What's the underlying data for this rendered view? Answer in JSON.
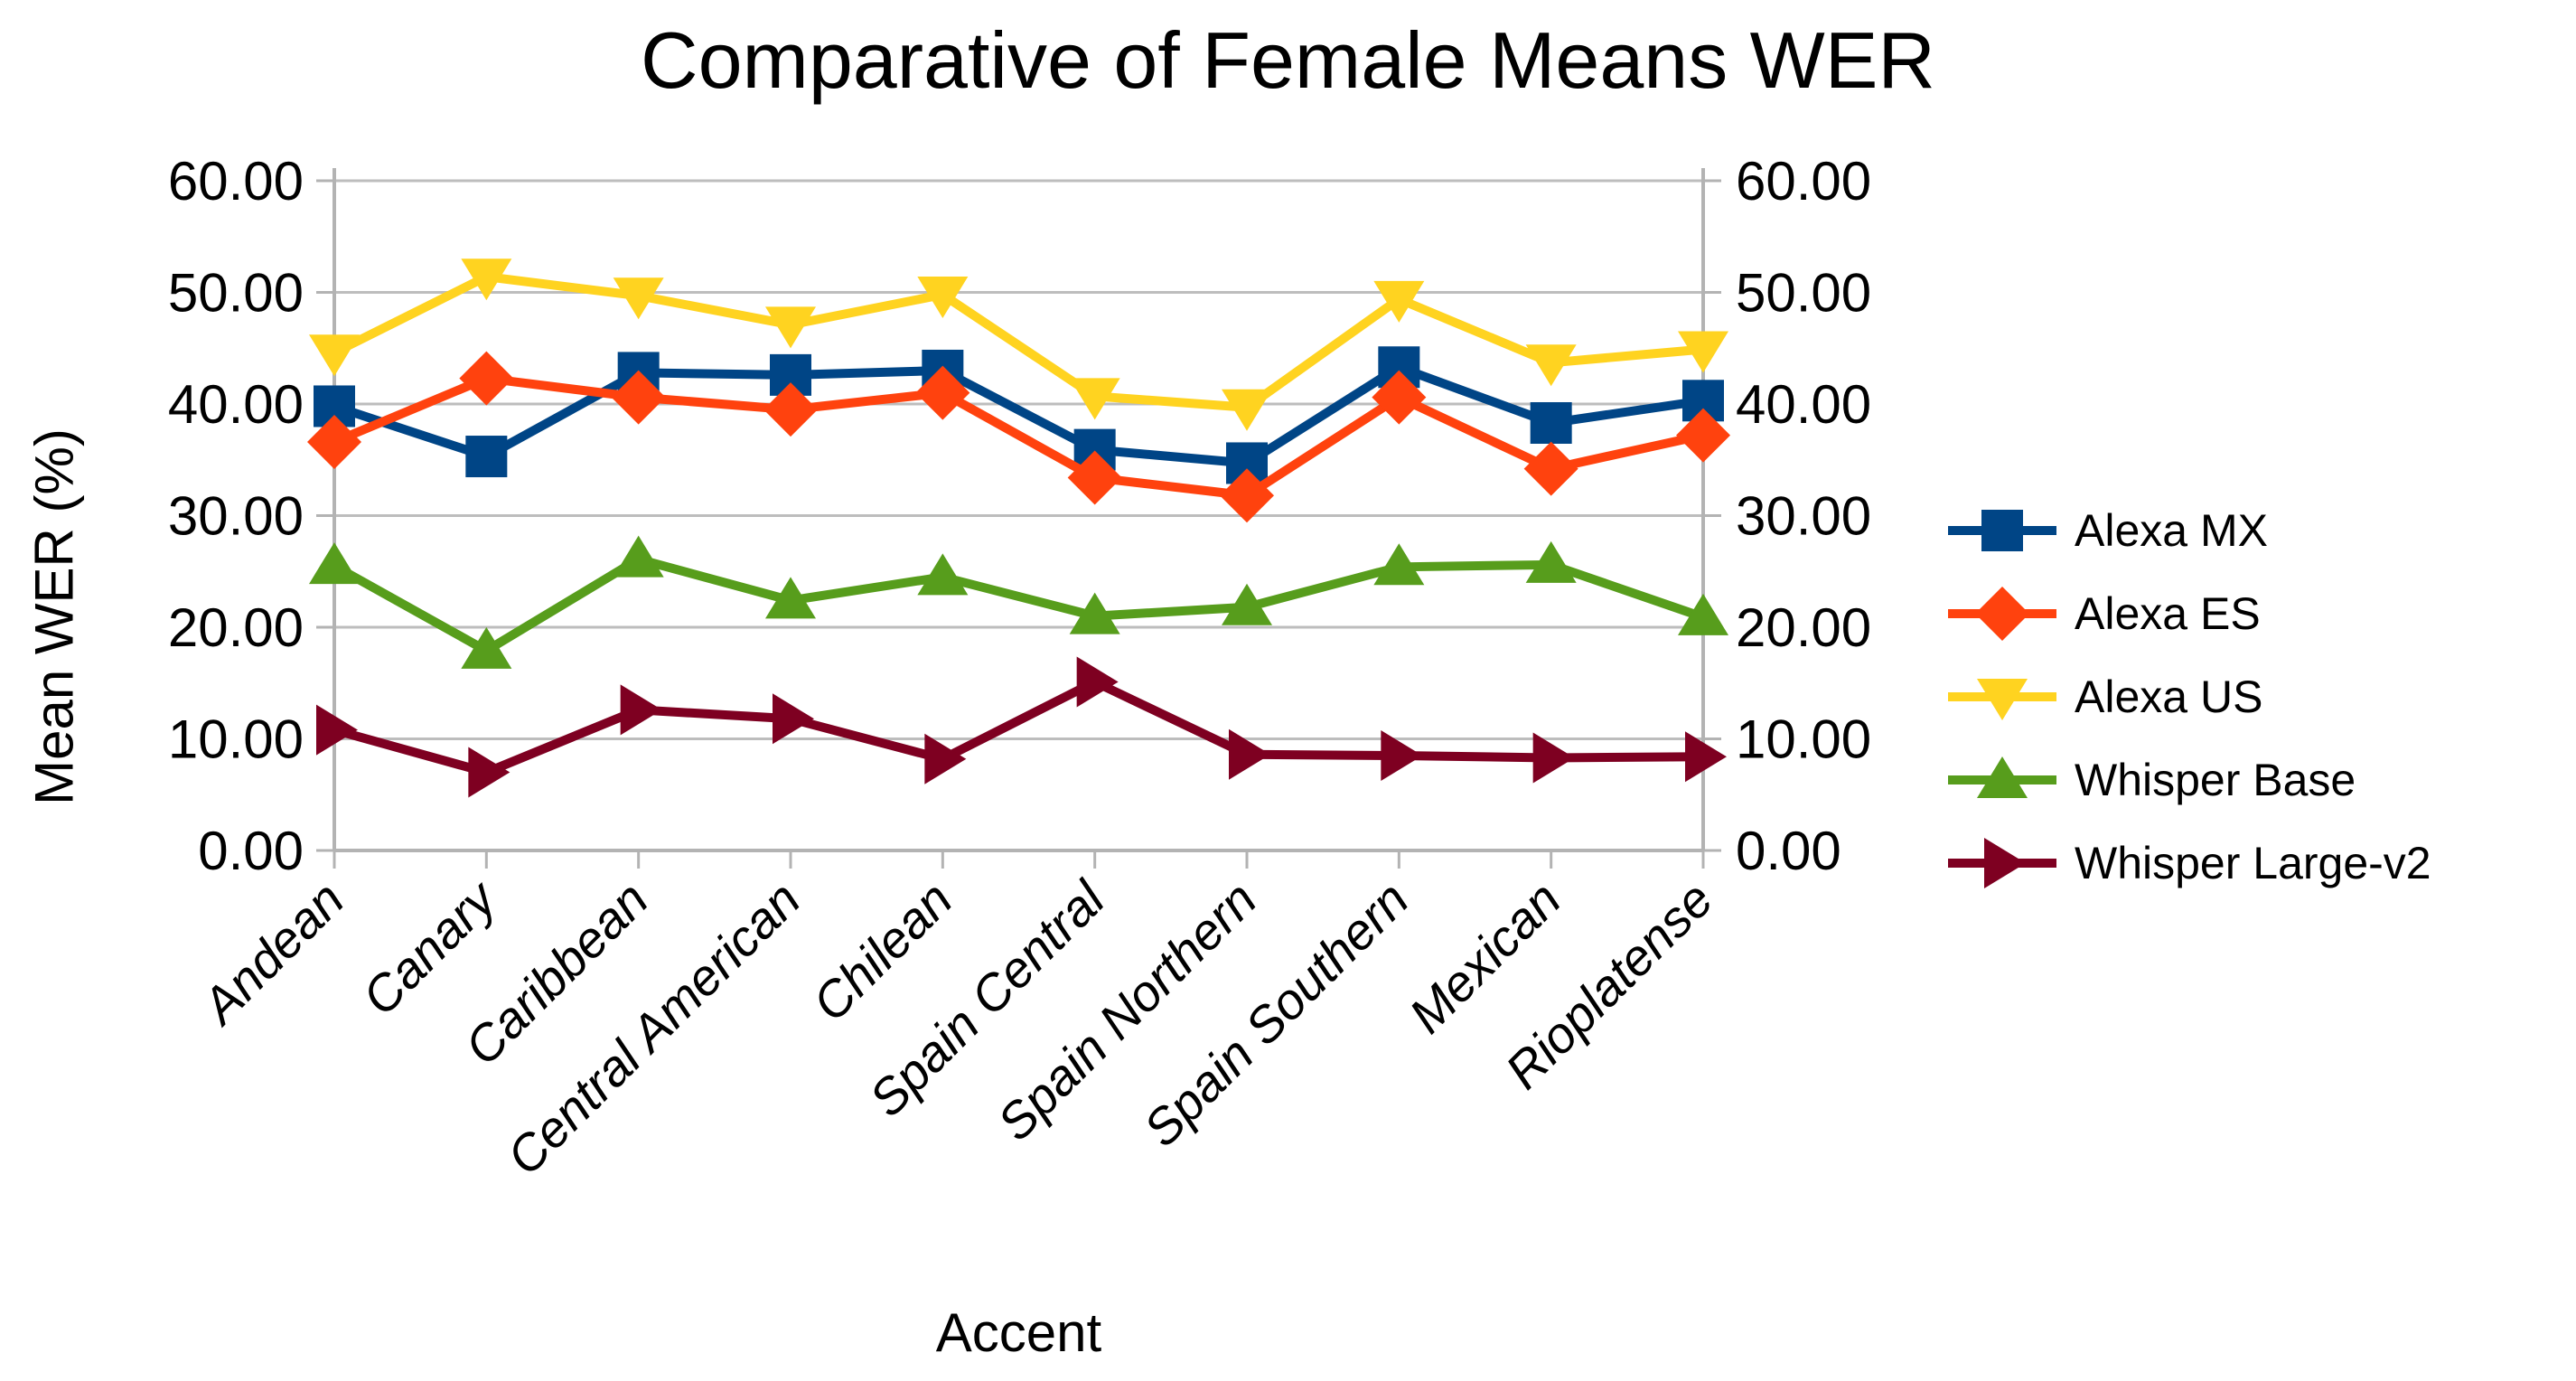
{
  "title": "Comparative of Female Means WER",
  "y_axis": {
    "title": "Mean WER (%)",
    "tick_labels": [
      "0.00",
      "10.00",
      "20.00",
      "30.00",
      "40.00",
      "50.00",
      "60.00"
    ]
  },
  "x_axis": {
    "title": "Accent"
  },
  "chart_data": {
    "type": "line",
    "title": "Comparative of Female Means WER",
    "xlabel": "Accent",
    "ylabel": "Mean WER (%)",
    "ylim": [
      0,
      60
    ],
    "y_step": 10,
    "y_ticks": [
      "0.00",
      "10.00",
      "20.00",
      "30.00",
      "40.00",
      "50.00",
      "60.00"
    ],
    "grid": true,
    "legend_position": "right",
    "categories": [
      "Andean",
      "Canary",
      "Caribbean",
      "Central American",
      "Chilean",
      "Spain Central",
      "Spain Northern",
      "Spain Southern",
      "Mexican",
      "Rioplatense"
    ],
    "series": [
      {
        "name": "Alexa MX",
        "color": "#004586",
        "marker": "square",
        "values": [
          39.8,
          35.3,
          42.8,
          42.6,
          43.0,
          35.9,
          34.7,
          43.3,
          38.3,
          40.3
        ]
      },
      {
        "name": "Alexa ES",
        "color": "#FF420E",
        "marker": "diamond",
        "values": [
          36.6,
          42.3,
          40.6,
          39.5,
          41.0,
          33.4,
          31.8,
          40.6,
          34.2,
          37.2
        ]
      },
      {
        "name": "Alexa US",
        "color": "#FFD320",
        "marker": "triangle-down",
        "values": [
          44.6,
          51.4,
          49.7,
          47.1,
          49.8,
          40.7,
          39.7,
          49.4,
          43.7,
          44.9
        ]
      },
      {
        "name": "Whisper Base",
        "color": "#579D1C",
        "marker": "triangle-up",
        "values": [
          25.5,
          17.9,
          26.1,
          22.4,
          24.5,
          21.0,
          21.8,
          25.4,
          25.6,
          20.9
        ]
      },
      {
        "name": "Whisper Large-v2",
        "color": "#7E0021",
        "marker": "triangle-right",
        "values": [
          10.8,
          7.0,
          12.6,
          11.8,
          8.2,
          15.1,
          8.6,
          8.5,
          8.3,
          8.4
        ]
      }
    ]
  },
  "colors": {
    "gridline": "#bdbdbd",
    "axis": "#b3b3b3",
    "text": "#000000"
  }
}
